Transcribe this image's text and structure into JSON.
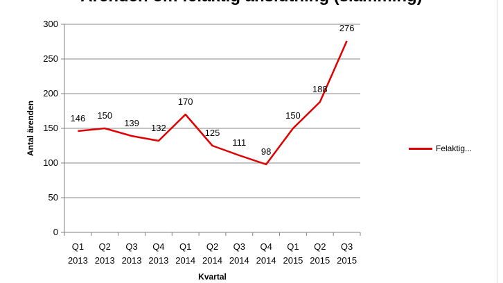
{
  "chart_data": {
    "type": "line",
    "title": "Ärenden om felaktig anslutning (slamming)",
    "categories": [
      [
        "Q1",
        "2013"
      ],
      [
        "Q2",
        "2013"
      ],
      [
        "Q3",
        "2013"
      ],
      [
        "Q4",
        "2013"
      ],
      [
        "Q1",
        "2014"
      ],
      [
        "Q2",
        "2014"
      ],
      [
        "Q3",
        "2014"
      ],
      [
        "Q4",
        "2014"
      ],
      [
        "Q1",
        "2015"
      ],
      [
        "Q2",
        "2015"
      ],
      [
        "Q3",
        "2015"
      ]
    ],
    "series": [
      {
        "name": "Felaktig...",
        "color": "#e00000",
        "values": [
          146,
          150,
          139,
          132,
          170,
          125,
          111,
          98,
          150,
          188,
          276
        ]
      }
    ],
    "xlabel": "Kvartal",
    "ylabel": "Antal ärenden",
    "ylim": [
      0,
      300
    ],
    "yticks": [
      0,
      50,
      100,
      150,
      200,
      250,
      300
    ],
    "grid": true,
    "legend_position": "right"
  }
}
